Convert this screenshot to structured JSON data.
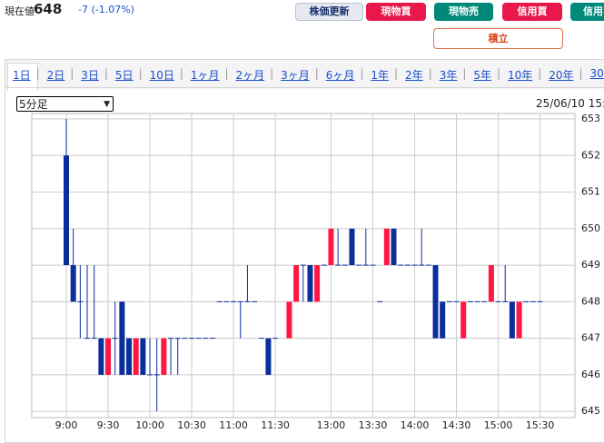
{
  "header": {
    "price_label": "現在値",
    "price": "648",
    "change": "-7 (-1.07%)"
  },
  "buttons": {
    "refresh": "株価更新",
    "cash_buy": "現物買",
    "cash_sell": "現物売",
    "margin_buy": "信用買",
    "margin_sell": "信用",
    "accumulate": "積立"
  },
  "tabs": [
    "1日",
    "2日",
    "3日",
    "5日",
    "10日",
    "1ヶ月",
    "2ヶ月",
    "3ヶ月",
    "6ヶ月",
    "1年",
    "2年",
    "3年",
    "5年",
    "10年",
    "20年",
    "30"
  ],
  "interval": "5分足",
  "timestamp": "25/06/10 15:",
  "chart_data": {
    "type": "candlestick",
    "categories": [
      "9:00",
      null,
      null,
      null,
      null,
      null,
      "9:30",
      null,
      null,
      null,
      null,
      null,
      "10:00",
      null,
      null,
      null,
      null,
      null,
      "10:30",
      null,
      null,
      null,
      null,
      null,
      "11:00",
      null,
      null,
      null,
      null,
      null,
      "11:30",
      null,
      null,
      null,
      null,
      null,
      null,
      null,
      "13:00",
      null,
      null,
      null,
      null,
      null,
      "13:30",
      null,
      null,
      null,
      null,
      null,
      "14:00",
      null,
      null,
      null,
      null,
      null,
      "14:30",
      null,
      null,
      null,
      null,
      null,
      "15:00",
      null,
      null,
      null,
      null,
      null,
      "15:30"
    ],
    "open": [
      652,
      649,
      648,
      647,
      647,
      647,
      646,
      647,
      648,
      647,
      646,
      647,
      646,
      646,
      646,
      647,
      647,
      647,
      647,
      647,
      647,
      647,
      648,
      648,
      648,
      648,
      648,
      648,
      647,
      647,
      647,
      null,
      647,
      648,
      649,
      649,
      648,
      649,
      649,
      649,
      649,
      650,
      649,
      649,
      649,
      648,
      649,
      650,
      649,
      649,
      649,
      649,
      649,
      649,
      648,
      648,
      648,
      647,
      648,
      648,
      648,
      648,
      648,
      648,
      648,
      647,
      648,
      648,
      648
    ],
    "high": [
      653,
      650,
      649,
      649,
      649,
      647,
      647,
      648,
      648,
      647,
      647,
      647,
      647,
      647,
      647,
      647,
      647,
      647,
      647,
      647,
      647,
      647,
      648,
      648,
      648,
      648,
      649,
      648,
      647,
      647,
      647,
      null,
      648,
      649,
      649,
      649,
      649,
      649,
      650,
      650,
      649,
      650,
      649,
      650,
      649,
      648,
      650,
      650,
      649,
      649,
      649,
      650,
      649,
      649,
      648,
      648,
      648,
      648,
      648,
      648,
      648,
      649,
      648,
      649,
      648,
      648,
      648,
      648,
      648
    ],
    "low": [
      649,
      648,
      647,
      647,
      647,
      646,
      646,
      646,
      646,
      646,
      646,
      646,
      646,
      645,
      646,
      646,
      646,
      647,
      647,
      647,
      647,
      647,
      648,
      648,
      648,
      647,
      648,
      648,
      647,
      646,
      647,
      null,
      647,
      648,
      648,
      648,
      648,
      649,
      649,
      649,
      649,
      649,
      649,
      649,
      649,
      648,
      649,
      649,
      649,
      649,
      649,
      649,
      649,
      647,
      647,
      648,
      648,
      647,
      648,
      648,
      648,
      648,
      648,
      648,
      647,
      647,
      648,
      648,
      648
    ],
    "close": [
      649,
      648,
      648,
      647,
      647,
      646,
      647,
      647,
      646,
      646,
      647,
      646,
      646,
      646,
      647,
      647,
      647,
      647,
      647,
      647,
      647,
      647,
      648,
      648,
      648,
      648,
      648,
      648,
      647,
      646,
      647,
      null,
      648,
      649,
      649,
      648,
      649,
      649,
      650,
      649,
      649,
      649,
      649,
      649,
      649,
      648,
      650,
      649,
      649,
      649,
      649,
      649,
      649,
      647,
      647,
      648,
      648,
      648,
      648,
      648,
      648,
      649,
      648,
      648,
      647,
      648,
      648,
      648,
      648
    ],
    "up_color": "#ff1744",
    "down_color": "#0a2e9a",
    "ylim": [
      644.83,
      653.15
    ],
    "yticks": [
      645,
      646,
      647,
      648,
      649,
      650,
      651,
      652,
      653
    ],
    "grid": true
  }
}
